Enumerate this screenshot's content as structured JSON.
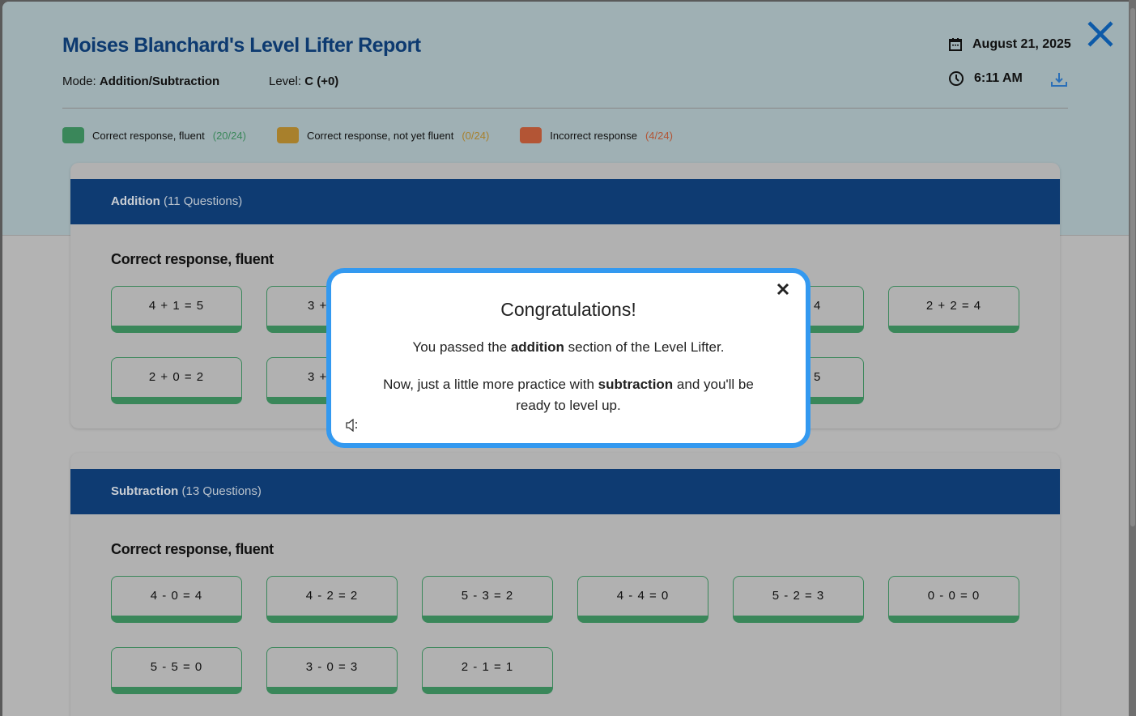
{
  "report": {
    "title": "Moises Blanchard's Level Lifter Report",
    "mode_label": "Mode:",
    "mode_value": "Addition/Subtraction",
    "level_label": "Level:",
    "level_value": "C (+0)",
    "date": "August 21, 2025",
    "time": "6:11 AM"
  },
  "legend": [
    {
      "label": "Correct response, fluent",
      "count": "(20/24)",
      "color": "#3a875a"
    },
    {
      "label": "Correct response, not yet fluent",
      "count": "(0/24)",
      "color": "#a8802c"
    },
    {
      "label": "Incorrect response",
      "count": "(4/24)",
      "color": "#b35535"
    }
  ],
  "addition": {
    "name": "Addition",
    "count": "(11 Questions)",
    "subheading": "Correct response, fluent",
    "cards": [
      "4 + 1 = 5",
      "3 +",
      "",
      "",
      "4",
      "2 + 2 = 4",
      "2 + 0 = 2",
      "3 +",
      "",
      "",
      "5"
    ]
  },
  "subtraction": {
    "name": "Subtraction",
    "count": "(13 Questions)",
    "subheading": "Correct response, fluent",
    "cards": [
      "4 - 0 = 4",
      "4 - 2 = 2",
      "5 - 3 = 2",
      "4 - 4 = 0",
      "5 - 2 = 3",
      "0 - 0 = 0",
      "5 - 5 = 0",
      "3 - 0 = 3",
      "2 - 1 = 1"
    ]
  },
  "modal": {
    "title": "Congratulations!",
    "line1_pre": "You passed the ",
    "line1_bold": "addition",
    "line1_post": " section of the Level Lifter.",
    "line2_pre": "Now, just a little more practice with ",
    "line2_bold": "subtraction",
    "line2_post": " and you'll be ready to level up."
  },
  "colors": {
    "accent": "#0e3b72",
    "modal_border": "#3399f0",
    "fluent": "#3a875a"
  }
}
